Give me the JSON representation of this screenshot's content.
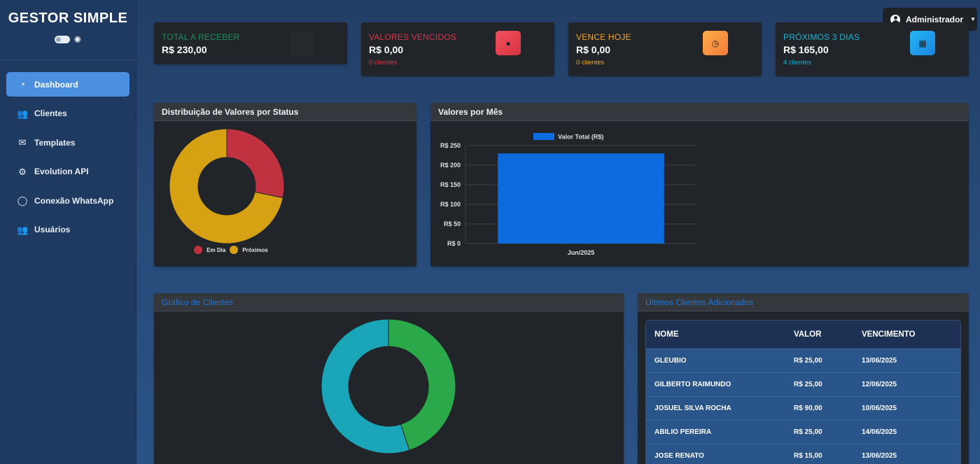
{
  "brand": {
    "title": "GESTOR SIMPLE"
  },
  "sidebar": {
    "items": [
      {
        "label": "Dashboard",
        "icon": "dashboard-gauge-icon",
        "active": true
      },
      {
        "label": "Clientes",
        "icon": "users-icon",
        "active": false
      },
      {
        "label": "Templates",
        "icon": "envelope-icon",
        "active": false
      },
      {
        "label": "Evolution API",
        "icon": "gear-icon",
        "active": false
      },
      {
        "label": "Conexão WhatsApp",
        "icon": "whatsapp-icon",
        "active": false
      },
      {
        "label": "Usuários",
        "icon": "users-cog-icon",
        "active": false
      }
    ]
  },
  "header": {
    "user_label": "Administrador"
  },
  "stats": {
    "total": {
      "label": "TOTAL A RECEBER",
      "value": "R$ 230,00",
      "color": "#1e8f5a"
    },
    "vencidos": {
      "label": "VALORES VENCIDOS",
      "value": "R$ 0,00",
      "sub": "0 clientes",
      "color": "#dc3545",
      "icon": "exclamation-circle-icon"
    },
    "hoje": {
      "label": "VENCE HOJE",
      "value": "R$ 0,00",
      "sub": "0 clientes",
      "color": "#f0a92e",
      "icon": "clock-icon"
    },
    "proximos": {
      "label": "PRÓXIMOS 3 DIAS",
      "value": "R$ 165,00",
      "sub": "4 clientes",
      "color": "#1ab3d6",
      "icon": "calendar-icon"
    }
  },
  "panels": {
    "status": {
      "title": "Distribuição de Valores por Status"
    },
    "monthly": {
      "title": "Valores por Mês"
    },
    "clients_chart": {
      "title": "Gráfico de Clientes"
    },
    "latest": {
      "title": "Últimos Clientes Adicionados"
    }
  },
  "chart_data": [
    {
      "type": "pie",
      "title": "Distribuição de Valores por Status",
      "categories": [
        "Em Dia",
        "Próximos"
      ],
      "values": [
        65,
        165
      ],
      "colors": [
        "#c0323f",
        "#d6a214"
      ],
      "legend": "bottom"
    },
    {
      "type": "bar",
      "title": "Valores por Mês",
      "categories": [
        "Jun/2025"
      ],
      "series": [
        {
          "name": "Valor Total (R$)",
          "values": [
            230
          ]
        }
      ],
      "ylim": [
        0,
        250
      ],
      "yticks": [
        "R$ 0",
        "R$ 50",
        "R$ 100",
        "R$ 150",
        "R$ 200",
        "R$ 250"
      ],
      "color": "#0d6be0",
      "grid": true,
      "legend": "top"
    },
    {
      "type": "pie",
      "title": "Gráfico de Clientes",
      "values": [
        45,
        55
      ],
      "colors": [
        "#2aa84a",
        "#1aa5b8"
      ]
    }
  ],
  "table": {
    "headers": [
      "NOME",
      "VALOR",
      "VENCIMENTO"
    ],
    "rows": [
      [
        "GLEUBIO",
        "R$ 25,00",
        "13/06/2025"
      ],
      [
        "GILBERTO RAIMUNDO",
        "R$ 25,00",
        "12/06/2025"
      ],
      [
        "JOSUEL SILVA ROCHA",
        "R$ 90,00",
        "10/06/2025"
      ],
      [
        "ABILIO PEREIRA",
        "R$ 25,00",
        "14/06/2025"
      ],
      [
        "JOSE RENATO",
        "R$ 15,00",
        "13/06/2025"
      ]
    ]
  }
}
